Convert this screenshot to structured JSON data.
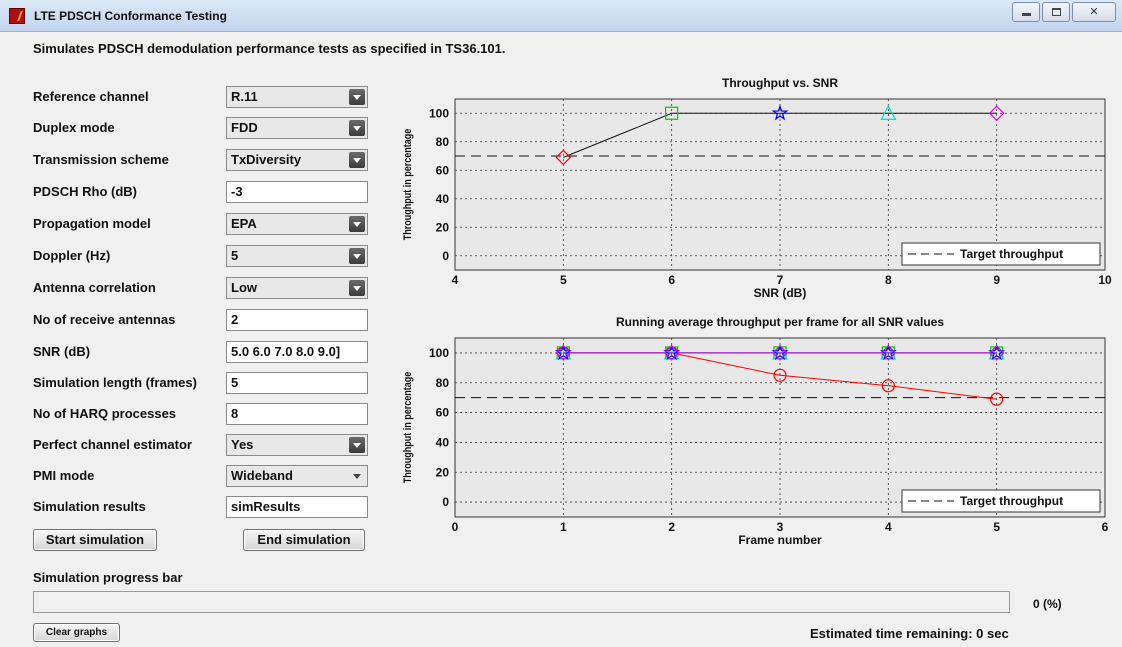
{
  "window": {
    "title": "LTE PDSCH Conformance Testing"
  },
  "description": "Simulates PDSCH demodulation performance tests as specified in TS36.101.",
  "params": [
    {
      "label": "Reference channel",
      "value": "R.11",
      "type": "dropdown"
    },
    {
      "label": "Duplex mode",
      "value": "FDD",
      "type": "dropdown"
    },
    {
      "label": "Transmission scheme",
      "value": "TxDiversity",
      "type": "dropdown"
    },
    {
      "label": "PDSCH Rho (dB)",
      "value": "-3",
      "type": "text"
    },
    {
      "label": "Propagation model",
      "value": "EPA",
      "type": "dropdown"
    },
    {
      "label": "Doppler (Hz)",
      "value": "5",
      "type": "dropdown"
    },
    {
      "label": "Antenna correlation",
      "value": "Low",
      "type": "dropdown"
    },
    {
      "label": "No of receive antennas",
      "value": "2",
      "type": "text"
    },
    {
      "label": "SNR (dB)",
      "value": "5.0 6.0 7.0 8.0 9.0]",
      "type": "text"
    },
    {
      "label": "Simulation length (frames)",
      "value": "5",
      "type": "text"
    },
    {
      "label": "No of HARQ processes",
      "value": "8",
      "type": "text"
    },
    {
      "label": "Perfect channel estimator",
      "value": "Yes",
      "type": "dropdown"
    },
    {
      "label": "PMI mode",
      "value": "Wideband",
      "type": "dropdown-plain"
    },
    {
      "label": "Simulation results",
      "value": "simResults",
      "type": "text"
    }
  ],
  "buttons": {
    "start": "Start simulation",
    "end": "End simulation",
    "clear": "Clear graphs"
  },
  "progress": {
    "label": "Simulation progress bar",
    "value": 0,
    "percent_text": "0 (%)"
  },
  "eta": {
    "text": "Estimated time remaining:  0 sec"
  },
  "colors": {
    "red": "#ff0000",
    "green": "#00c800",
    "blue": "#0000ff",
    "cyan": "#00d8d8",
    "magenta": "#e000e0",
    "axes_bg": "#e8e8e8"
  },
  "chart_data": [
    {
      "type": "line",
      "title": "Throughput vs. SNR",
      "xlabel": "SNR (dB)",
      "ylabel": "Throughput in percentage",
      "xlim": [
        4,
        10
      ],
      "ylim": [
        -10,
        110
      ],
      "xticks": [
        4,
        5,
        6,
        7,
        8,
        9,
        10
      ],
      "yticks": [
        0,
        20,
        40,
        60,
        80,
        100
      ],
      "grid": true,
      "legend": {
        "position": "bottom-right",
        "entries": [
          "Target throughput"
        ]
      },
      "target": 70,
      "line_points": [
        [
          5,
          69
        ],
        [
          6,
          100
        ],
        [
          7,
          100
        ],
        [
          8,
          100
        ],
        [
          9,
          100
        ]
      ],
      "markers": [
        {
          "x": 5,
          "y": 69,
          "shape": "diamond",
          "color": "red"
        },
        {
          "x": 6,
          "y": 100,
          "shape": "square",
          "color": "green"
        },
        {
          "x": 7,
          "y": 100,
          "shape": "star",
          "color": "blue"
        },
        {
          "x": 8,
          "y": 100,
          "shape": "triangle",
          "color": "cyan"
        },
        {
          "x": 9,
          "y": 100,
          "shape": "diamond",
          "color": "magenta"
        }
      ]
    },
    {
      "type": "line",
      "title": "Running average throughput per frame for all SNR values",
      "xlabel": "Frame number",
      "ylabel": "Throughput in percentage",
      "xlim": [
        0,
        6
      ],
      "ylim": [
        -10,
        110
      ],
      "xticks": [
        0,
        1,
        2,
        3,
        4,
        5,
        6
      ],
      "yticks": [
        0,
        20,
        40,
        60,
        80,
        100
      ],
      "grid": true,
      "legend": {
        "position": "bottom-right",
        "entries": [
          "Target throughput"
        ]
      },
      "target": 70,
      "x": [
        1,
        2,
        3,
        4,
        5
      ],
      "series": [
        {
          "color": "red",
          "marker": "circle",
          "values": [
            100,
            100,
            85,
            78,
            69
          ]
        },
        {
          "color": "green",
          "marker": "square",
          "values": [
            100,
            100,
            100,
            100,
            100
          ]
        },
        {
          "color": "cyan",
          "marker": "triangle",
          "values": [
            100,
            100,
            100,
            100,
            100
          ]
        },
        {
          "color": "blue",
          "marker": "star",
          "values": [
            100,
            100,
            100,
            100,
            100
          ]
        },
        {
          "color": "magenta",
          "marker": "diamond",
          "values": [
            100,
            100,
            100,
            100,
            100
          ]
        }
      ]
    }
  ]
}
